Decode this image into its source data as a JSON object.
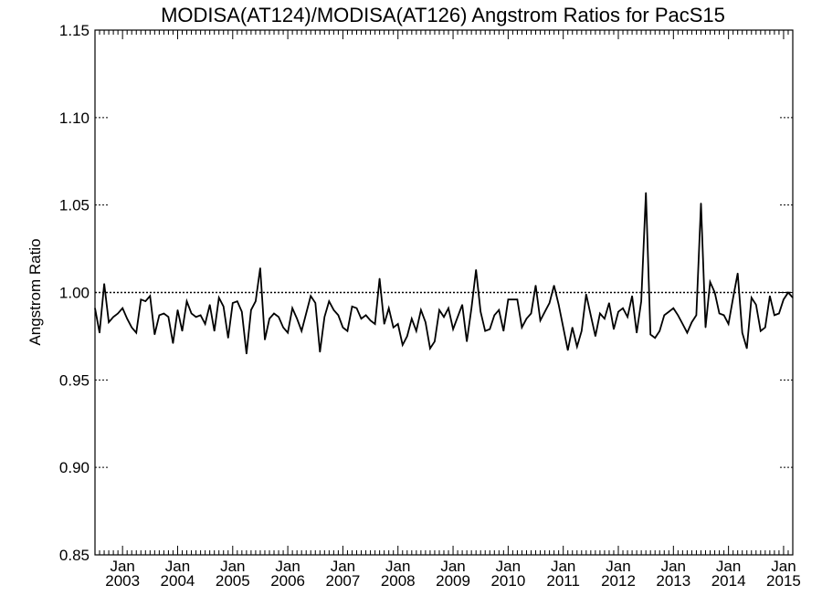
{
  "chart_data": {
    "type": "line",
    "title": "MODISA(AT124)/MODISA(AT126)  Angstrom Ratios for PacS15",
    "xlabel": "",
    "ylabel": "Angstrom Ratio",
    "ylim": [
      0.85,
      1.15
    ],
    "yticks": [
      "0.85",
      "0.90",
      "0.95",
      "1.00",
      "1.05",
      "1.10",
      "1.15"
    ],
    "xlim": [
      "2002-07",
      "2015-03"
    ],
    "xticks": [
      {
        "month": "Jan",
        "year": "2003",
        "date": "2003-01"
      },
      {
        "month": "Jan",
        "year": "2004",
        "date": "2004-01"
      },
      {
        "month": "Jan",
        "year": "2005",
        "date": "2005-01"
      },
      {
        "month": "Jan",
        "year": "2006",
        "date": "2006-01"
      },
      {
        "month": "Jan",
        "year": "2007",
        "date": "2007-01"
      },
      {
        "month": "Jan",
        "year": "2008",
        "date": "2008-01"
      },
      {
        "month": "Jan",
        "year": "2009",
        "date": "2009-01"
      },
      {
        "month": "Jan",
        "year": "2010",
        "date": "2010-01"
      },
      {
        "month": "Jan",
        "year": "2011",
        "date": "2011-01"
      },
      {
        "month": "Jan",
        "year": "2012",
        "date": "2012-01"
      },
      {
        "month": "Jan",
        "year": "2013",
        "date": "2013-01"
      },
      {
        "month": "Jan",
        "year": "2014",
        "date": "2014-01"
      },
      {
        "month": "Jan",
        "year": "2015",
        "date": "2015-01"
      }
    ],
    "reference_line": {
      "y": 1.0,
      "style": "dotted"
    },
    "grid": false,
    "series": [
      {
        "x": [
          "2002-07",
          "2002-08",
          "2002-09",
          "2002-10",
          "2002-11",
          "2002-12",
          "2003-01",
          "2003-02",
          "2003-03",
          "2003-04",
          "2003-05",
          "2003-06",
          "2003-07",
          "2003-08",
          "2003-09",
          "2003-10",
          "2003-11",
          "2003-12",
          "2004-01",
          "2004-02",
          "2004-03",
          "2004-04",
          "2004-05",
          "2004-06",
          "2004-07",
          "2004-08",
          "2004-09",
          "2004-10",
          "2004-11",
          "2004-12",
          "2005-01",
          "2005-02",
          "2005-03",
          "2005-04",
          "2005-05",
          "2005-06",
          "2005-07",
          "2005-08",
          "2005-09",
          "2005-10",
          "2005-11",
          "2005-12",
          "2006-01",
          "2006-02",
          "2006-03",
          "2006-04",
          "2006-05",
          "2006-06",
          "2006-07",
          "2006-08",
          "2006-09",
          "2006-10",
          "2006-11",
          "2006-12",
          "2007-01",
          "2007-02",
          "2007-03",
          "2007-04",
          "2007-05",
          "2007-06",
          "2007-07",
          "2007-08",
          "2007-09",
          "2007-10",
          "2007-11",
          "2007-12",
          "2008-01",
          "2008-02",
          "2008-03",
          "2008-04",
          "2008-05",
          "2008-06",
          "2008-07",
          "2008-08",
          "2008-09",
          "2008-10",
          "2008-11",
          "2008-12",
          "2009-01",
          "2009-02",
          "2009-03",
          "2009-04",
          "2009-05",
          "2009-06",
          "2009-07",
          "2009-08",
          "2009-09",
          "2009-10",
          "2009-11",
          "2009-12",
          "2010-01",
          "2010-02",
          "2010-03",
          "2010-04",
          "2010-05",
          "2010-06",
          "2010-07",
          "2010-08",
          "2010-09",
          "2010-10",
          "2010-11",
          "2010-12",
          "2011-01",
          "2011-02",
          "2011-03",
          "2011-04",
          "2011-05",
          "2011-06",
          "2011-07",
          "2011-08",
          "2011-09",
          "2011-10",
          "2011-11",
          "2011-12",
          "2012-01",
          "2012-02",
          "2012-03",
          "2012-04",
          "2012-05",
          "2012-06",
          "2012-07",
          "2012-08",
          "2012-09",
          "2012-10",
          "2012-11",
          "2012-12",
          "2013-01",
          "2013-02",
          "2013-03",
          "2013-04",
          "2013-05",
          "2013-06",
          "2013-07",
          "2013-08",
          "2013-09",
          "2013-10",
          "2013-11",
          "2013-12",
          "2014-01",
          "2014-02",
          "2014-03",
          "2014-04",
          "2014-05",
          "2014-06",
          "2014-07",
          "2014-08",
          "2014-09",
          "2014-10",
          "2014-11",
          "2014-12",
          "2015-01",
          "2015-02",
          "2015-03"
        ],
        "y": [
          0.991,
          0.977,
          1.005,
          0.983,
          0.986,
          0.988,
          0.991,
          0.985,
          0.98,
          0.977,
          0.996,
          0.995,
          0.998,
          0.976,
          0.987,
          0.988,
          0.986,
          0.971,
          0.99,
          0.978,
          0.995,
          0.988,
          0.986,
          0.987,
          0.982,
          0.993,
          0.978,
          0.997,
          0.992,
          0.974,
          0.994,
          0.995,
          0.989,
          0.965,
          0.99,
          0.995,
          1.014,
          0.973,
          0.985,
          0.988,
          0.986,
          0.98,
          0.977,
          0.991,
          0.985,
          0.978,
          0.988,
          0.998,
          0.994,
          0.966,
          0.986,
          0.995,
          0.99,
          0.987,
          0.98,
          0.978,
          0.992,
          0.991,
          0.985,
          0.987,
          0.984,
          0.982,
          1.008,
          0.982,
          0.991,
          0.98,
          0.982,
          0.97,
          0.975,
          0.985,
          0.978,
          0.99,
          0.983,
          0.968,
          0.972,
          0.99,
          0.986,
          0.991,
          0.979,
          0.986,
          0.993,
          0.972,
          0.991,
          1.013,
          0.989,
          0.978,
          0.979,
          0.987,
          0.99,
          0.978,
          0.996,
          0.996,
          0.996,
          0.98,
          0.985,
          0.988,
          1.004,
          0.984,
          0.989,
          0.994,
          1.004,
          0.993,
          0.98,
          0.967,
          0.98,
          0.969,
          0.978,
          0.999,
          0.987,
          0.975,
          0.988,
          0.985,
          0.994,
          0.979,
          0.989,
          0.991,
          0.986,
          0.998,
          0.977,
          0.995,
          1.057,
          0.976,
          0.974,
          0.978,
          0.987,
          0.989,
          0.991,
          0.987,
          0.982,
          0.977,
          0.983,
          0.987,
          1.051,
          0.98,
          1.006,
          1.0,
          0.988,
          0.987,
          0.982,
          0.997,
          1.011,
          0.977,
          0.968,
          0.997,
          0.993,
          0.978,
          0.98,
          0.998,
          0.987,
          0.988,
          0.996,
          1.0,
          0.997
        ]
      }
    ]
  }
}
